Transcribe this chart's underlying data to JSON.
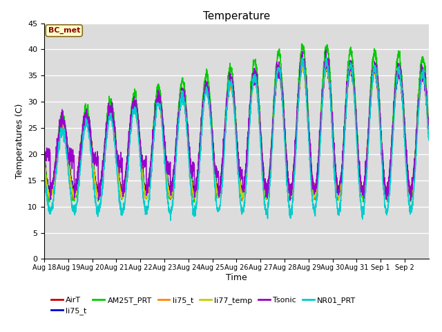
{
  "title": "Temperature",
  "xlabel": "Time",
  "ylabel": "Temperatures (C)",
  "ylim": [
    0,
    45
  ],
  "plot_bg_color": "#dcdcdc",
  "grid_color": "white",
  "x_tick_labels": [
    "Aug 18",
    "Aug 19",
    "Aug 20",
    "Aug 21",
    "Aug 22",
    "Aug 23",
    "Aug 24",
    "Aug 25",
    "Aug 26",
    "Aug 27",
    "Aug 28",
    "Aug 29",
    "Aug 30",
    "Aug 31",
    "Sep 1",
    "Sep 2"
  ],
  "annotation_text": "BC_met",
  "annotation_color": "#8B0000",
  "annotation_bg": "#ffffcc",
  "annotation_edge": "#8B6914",
  "series": [
    {
      "name": "AirT",
      "color": "#cc0000",
      "lw": 1.2
    },
    {
      "name": "li75_t",
      "color": "#0000cc",
      "lw": 1.2
    },
    {
      "name": "AM25T_PRT",
      "color": "#00cc00",
      "lw": 1.2
    },
    {
      "name": "li75_t",
      "color": "#ff8800",
      "lw": 1.2
    },
    {
      "name": "li77_temp",
      "color": "#cccc00",
      "lw": 1.2
    },
    {
      "name": "Tsonic",
      "color": "#9900cc",
      "lw": 1.2
    },
    {
      "name": "NR01_PRT",
      "color": "#00cccc",
      "lw": 1.2
    }
  ],
  "legend_ncol": 6,
  "figsize": [
    6.4,
    4.8
  ],
  "dpi": 100
}
